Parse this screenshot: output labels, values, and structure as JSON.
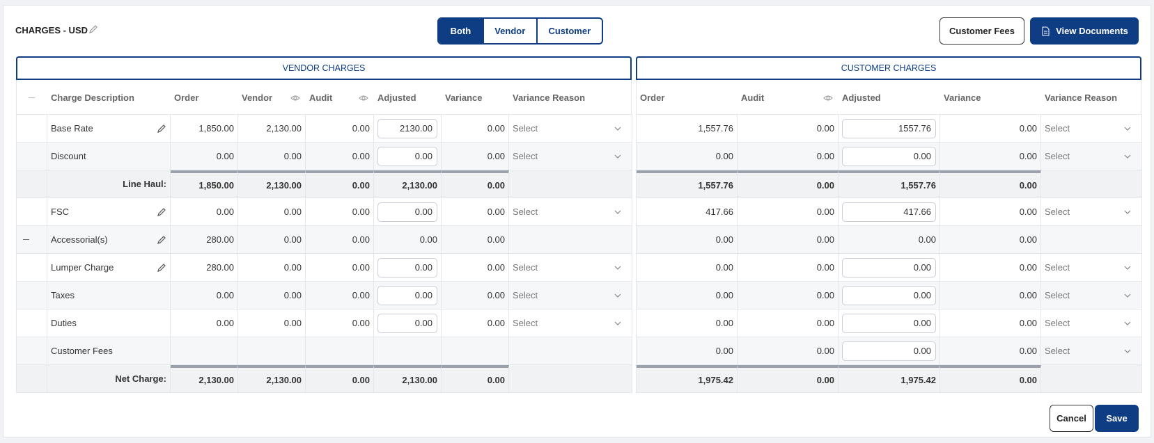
{
  "header": {
    "title": "CHARGES - USD",
    "toggle": [
      "Both",
      "Vendor",
      "Customer"
    ],
    "buttons": [
      "Customer Fees",
      "View Documents"
    ]
  },
  "vendor": {
    "title": "VENDOR CHARGES",
    "columns": [
      "Charge Description",
      "Order",
      "Vendor",
      "Audit",
      "Adjusted",
      "Variance",
      "Variance Reason"
    ],
    "rows": [
      [
        "Base Rate",
        "1,850.00",
        "2,130.00",
        "0.00",
        "2130.00",
        "0.00",
        "Select"
      ],
      [
        "Discount",
        "0.00",
        "0.00",
        "0.00",
        "0.00",
        "0.00",
        "Select"
      ],
      [
        "Line Haul:",
        "1,850.00",
        "2,130.00",
        "0.00",
        "2,130.00",
        "0.00",
        null
      ],
      [
        "FSC",
        "0.00",
        "0.00",
        "0.00",
        "0.00",
        "0.00",
        "Select"
      ],
      [
        "Accessorial(s)",
        "280.00",
        "0.00",
        "0.00",
        "0.00",
        "0.00",
        null
      ],
      [
        "Lumper Charge",
        "280.00",
        "0.00",
        "0.00",
        "0.00",
        "0.00",
        "Select"
      ],
      [
        "Taxes",
        "0.00",
        "0.00",
        "0.00",
        "0.00",
        "0.00",
        "Select"
      ],
      [
        "Duties",
        "0.00",
        "0.00",
        "0.00",
        "0.00",
        "0.00",
        "Select"
      ],
      [
        "Customer Fees",
        null,
        null,
        null,
        null,
        null,
        null
      ],
      [
        "Net Charge:",
        "2,130.00",
        "2,130.00",
        "0.00",
        "2,130.00",
        "0.00",
        null
      ]
    ]
  },
  "customer": {
    "title": "CUSTOMER CHARGES",
    "columns": [
      "Order",
      "Audit",
      "Adjusted",
      "Variance",
      "Variance Reason"
    ],
    "rows": [
      [
        "1,557.76",
        "0.00",
        "1557.76",
        "0.00",
        "Select"
      ],
      [
        "0.00",
        "0.00",
        "0.00",
        "0.00",
        "Select"
      ],
      [
        "1,557.76",
        "0.00",
        "1,557.76",
        "0.00",
        null
      ],
      [
        "417.66",
        "0.00",
        "417.66",
        "0.00",
        "Select"
      ],
      [
        "0.00",
        "0.00",
        "0.00",
        "0.00",
        null
      ],
      [
        "0.00",
        "0.00",
        "0.00",
        "0.00",
        "Select"
      ],
      [
        "0.00",
        "0.00",
        "0.00",
        "0.00",
        "Select"
      ],
      [
        "0.00",
        "0.00",
        "0.00",
        "0.00",
        "Select"
      ],
      [
        "0.00",
        "0.00",
        "0.00",
        "0.00",
        "Select"
      ],
      [
        "1,975.42",
        "0.00",
        "1,975.42",
        "0.00",
        null
      ]
    ]
  },
  "footer": {
    "buttons": [
      "Cancel",
      "Save"
    ]
  }
}
